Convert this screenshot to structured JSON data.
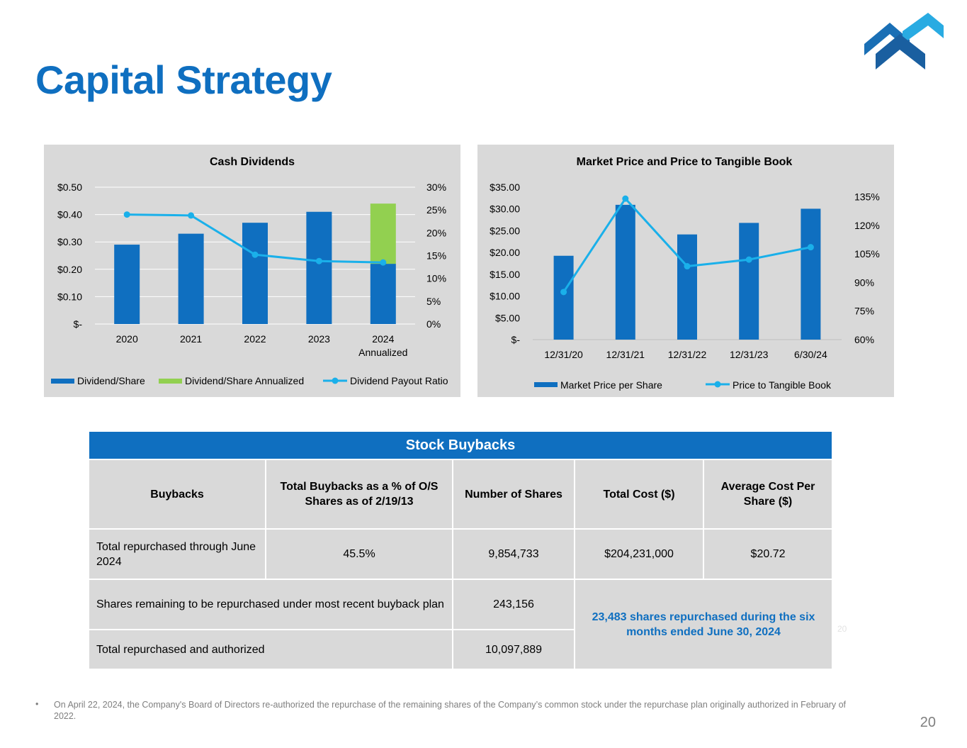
{
  "page": {
    "title": "Capital Strategy",
    "page_number": "20",
    "ghost_number": "20",
    "footnote_bullet": "•",
    "footnote": "On April 22, 2024, the Company's Board of Directors re-authorized the repurchase of the remaining shares of the Company’s common stock under the repurchase plan originally authorized in February of 2022."
  },
  "colors": {
    "brand_blue": "#0f6fc0",
    "line_blue": "#1ab0ea",
    "annualized_green": "#92d050",
    "panel_gray": "#d9d9d9"
  },
  "chart_data": [
    {
      "type": "bar",
      "title": "Cash Dividends",
      "categories": [
        "2020",
        "2021",
        "2022",
        "2023",
        "2024"
      ],
      "category_sublabels": [
        "",
        "",
        "",
        "",
        "Annualized"
      ],
      "series": [
        {
          "name": "Dividend/Share",
          "kind": "bar",
          "stack": "a",
          "axis": "left",
          "values": [
            0.29,
            0.33,
            0.37,
            0.41,
            0.22
          ]
        },
        {
          "name": "Dividend/Share Annualized",
          "kind": "bar",
          "stack": "a",
          "axis": "left",
          "values": [
            0,
            0,
            0,
            0,
            0.22
          ]
        },
        {
          "name": "Dividend Payout Ratio",
          "kind": "line",
          "axis": "right",
          "values": [
            24.0,
            23.8,
            15.2,
            13.8,
            13.5
          ]
        }
      ],
      "y_left": {
        "min": 0,
        "max": 0.5,
        "ticks": [
          0,
          0.1,
          0.2,
          0.3,
          0.4,
          0.5
        ],
        "tick_labels": [
          "$-",
          "$0.10",
          "$0.20",
          "$0.30",
          "$0.40",
          "$0.50"
        ]
      },
      "y_right": {
        "min": 0,
        "max": 30,
        "ticks": [
          0,
          5,
          10,
          15,
          20,
          25,
          30
        ],
        "tick_labels": [
          "0%",
          "5%",
          "10%",
          "15%",
          "20%",
          "25%",
          "30%"
        ]
      },
      "legend": [
        "Dividend/Share",
        "Dividend/Share Annualized",
        "Dividend Payout Ratio"
      ],
      "legend_position": "bottom",
      "grid": true
    },
    {
      "type": "bar",
      "title": "Market Price and Price to Tangible Book",
      "categories": [
        "12/31/20",
        "12/31/21",
        "12/31/22",
        "12/31/23",
        "6/30/24"
      ],
      "series": [
        {
          "name": "Market Price per Share",
          "kind": "bar",
          "axis": "left",
          "values": [
            19.25,
            30.95,
            24.15,
            26.8,
            30.05
          ]
        },
        {
          "name": "Price to Tangible Book",
          "kind": "line",
          "axis": "right",
          "values": [
            85,
            134,
            98.5,
            102,
            108.5
          ]
        }
      ],
      "y_left": {
        "min": 0,
        "max": 35,
        "ticks": [
          0,
          5,
          10,
          15,
          20,
          25,
          30,
          35
        ],
        "tick_labels": [
          "$-",
          "$5.00",
          "$10.00",
          "$15.00",
          "$20.00",
          "$25.00",
          "$30.00",
          "$35.00"
        ]
      },
      "y_right": {
        "min": 60,
        "max": 140,
        "ticks": [
          60,
          75,
          90,
          105,
          120,
          135
        ],
        "tick_labels": [
          "60%",
          "75%",
          "90%",
          "105%",
          "120%",
          "135%"
        ]
      },
      "legend": [
        "Market Price per Share",
        "Price to Tangible Book"
      ],
      "legend_position": "bottom",
      "grid": false
    }
  ],
  "table": {
    "title": "Stock Buybacks",
    "columns": [
      "Buybacks",
      "Total Buybacks as a % of O/S Shares as of 2/19/13",
      "Number of Shares",
      "Total Cost ($)",
      "Average Cost Per Share ($)"
    ],
    "row1": {
      "label": "Total repurchased through June 2024",
      "pct": "45.5%",
      "shares": "9,854,733",
      "cost": "$204,231,000",
      "avg": "$20.72"
    },
    "row2": {
      "label": "Shares remaining to be repurchased under most recent buyback plan",
      "shares": "243,156"
    },
    "row3": {
      "label": "Total repurchased and authorized",
      "shares": "10,097,889"
    },
    "note": "23,483 shares repurchased during the six months ended June 30, 2024"
  }
}
